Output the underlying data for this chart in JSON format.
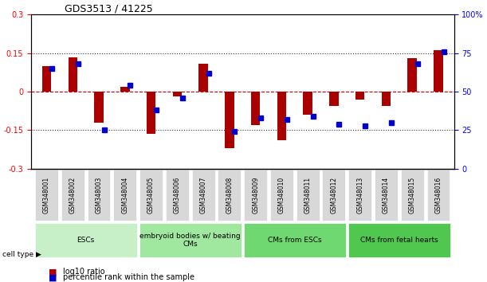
{
  "title": "GDS3513 / 41225",
  "samples": [
    "GSM348001",
    "GSM348002",
    "GSM348003",
    "GSM348004",
    "GSM348005",
    "GSM348006",
    "GSM348007",
    "GSM348008",
    "GSM348009",
    "GSM348010",
    "GSM348011",
    "GSM348012",
    "GSM348013",
    "GSM348014",
    "GSM348015",
    "GSM348016"
  ],
  "log10_ratio": [
    0.1,
    0.135,
    -0.12,
    0.02,
    -0.165,
    -0.02,
    0.11,
    -0.22,
    -0.13,
    -0.19,
    -0.09,
    -0.055,
    -0.03,
    -0.055,
    0.13,
    0.16
  ],
  "percentile_rank": [
    65,
    68,
    25,
    54,
    38,
    46,
    62,
    24,
    33,
    32,
    34,
    29,
    28,
    30,
    68,
    76
  ],
  "left_ylim": [
    -0.3,
    0.3
  ],
  "right_ylim": [
    0,
    100
  ],
  "left_yticks": [
    -0.3,
    -0.15,
    0,
    0.15,
    0.3
  ],
  "right_yticks": [
    0,
    25,
    50,
    75,
    100
  ],
  "left_ytick_labels": [
    "-0.3",
    "-0.15",
    "0",
    "0.15",
    "0.3"
  ],
  "right_ytick_labels": [
    "0",
    "25",
    "50",
    "75",
    "100%"
  ],
  "cell_type_groups": [
    {
      "label": "ESCs",
      "start": 0,
      "end": 3,
      "color": "#c8f0c8"
    },
    {
      "label": "embryoid bodies w/ beating\nCMs",
      "start": 4,
      "end": 7,
      "color": "#a0e8a0"
    },
    {
      "label": "CMs from ESCs",
      "start": 8,
      "end": 11,
      "color": "#70d870"
    },
    {
      "label": "CMs from fetal hearts",
      "start": 12,
      "end": 15,
      "color": "#50c850"
    }
  ],
  "bar_color": "#aa0000",
  "dot_color": "#0000cc",
  "hline_color": "#cc0000",
  "gridline_color": "#333333",
  "background_color": "#ffffff"
}
